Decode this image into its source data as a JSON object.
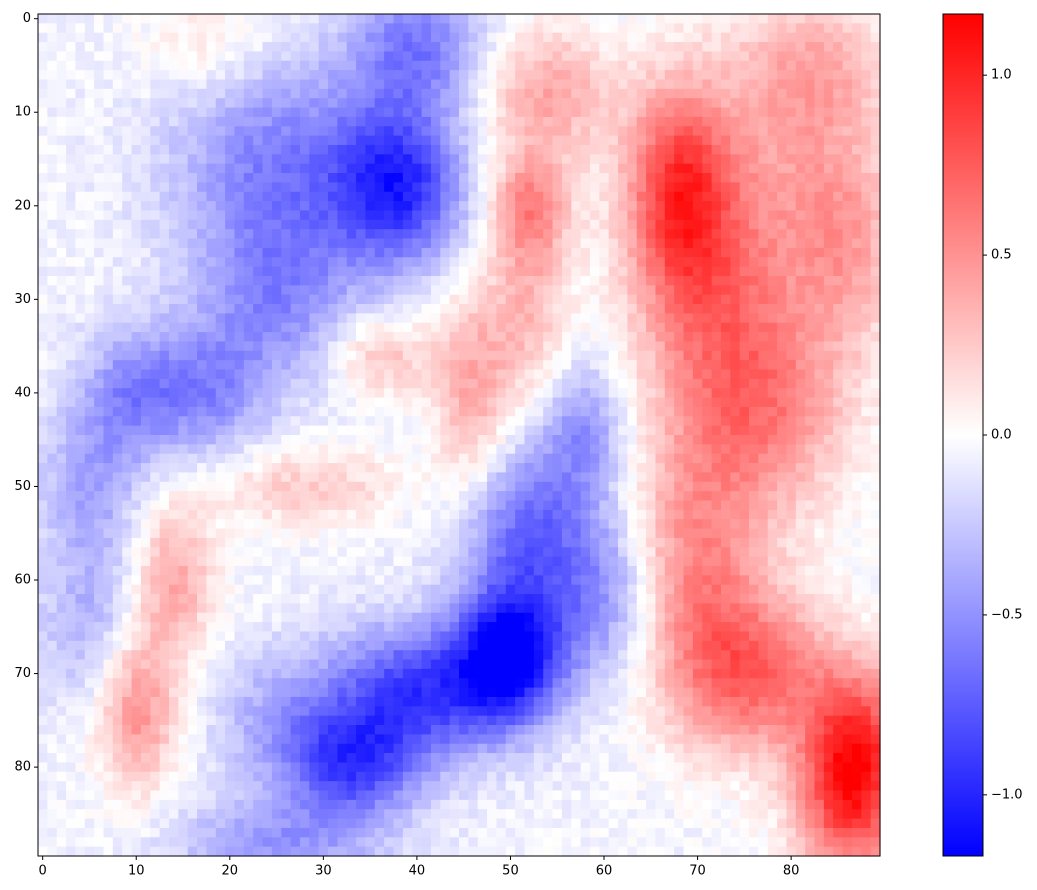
{
  "chart_data": {
    "type": "heatmap",
    "title": "",
    "xlabel": "",
    "ylabel": "",
    "grid_size": [
      90,
      90
    ],
    "x_ticks": [
      0,
      10,
      20,
      30,
      40,
      50,
      60,
      70,
      80
    ],
    "y_ticks": [
      0,
      10,
      20,
      30,
      40,
      50,
      60,
      70,
      80
    ],
    "colormap": "bwr",
    "colormap_colors": {
      "low": "#0000ff",
      "mid": "#ffffff",
      "high": "#ff0000"
    },
    "vmin": -1.17,
    "vmax": 1.17,
    "colorbar_ticks": [
      {
        "value": 1.0,
        "label": "1.0"
      },
      {
        "value": 0.5,
        "label": "0.5"
      },
      {
        "value": 0.0,
        "label": "0.0"
      },
      {
        "value": -0.5,
        "label": "−0.5"
      },
      {
        "value": -1.0,
        "label": "−1.0"
      }
    ],
    "value_model": {
      "description": "approximate field reconstructed as sum of gaussian blobs (row, col, amplitude, sigma_row, sigma_col)",
      "base": -0.05,
      "blobs": [
        [
          18,
          68,
          0.85,
          8,
          4
        ],
        [
          30,
          72,
          0.55,
          10,
          6
        ],
        [
          42,
          78,
          0.5,
          8,
          6
        ],
        [
          58,
          70,
          0.55,
          10,
          5
        ],
        [
          70,
          76,
          0.7,
          6,
          6
        ],
        [
          78,
          87,
          1.0,
          6,
          4
        ],
        [
          86,
          86,
          0.55,
          5,
          4
        ],
        [
          14,
          80,
          0.3,
          10,
          6
        ],
        [
          5,
          83,
          0.3,
          5,
          6
        ],
        [
          24,
          86,
          0.4,
          8,
          4
        ],
        [
          8,
          54,
          0.45,
          5,
          5
        ],
        [
          20,
          52,
          0.5,
          4,
          3
        ],
        [
          40,
          46,
          0.45,
          8,
          3
        ],
        [
          30,
          52,
          0.35,
          8,
          3
        ],
        [
          50,
          28,
          0.3,
          3,
          7
        ],
        [
          36,
          36,
          0.35,
          3,
          4
        ],
        [
          74,
          10,
          0.55,
          6,
          3
        ],
        [
          60,
          14,
          0.45,
          6,
          3
        ],
        [
          3,
          18,
          0.2,
          4,
          5
        ],
        [
          18,
          38,
          -0.9,
          6,
          5
        ],
        [
          15,
          25,
          -0.5,
          8,
          8
        ],
        [
          3,
          40,
          -0.55,
          5,
          5
        ],
        [
          30,
          25,
          -0.45,
          7,
          6
        ],
        [
          40,
          10,
          -0.5,
          5,
          4
        ],
        [
          40,
          18,
          -0.4,
          5,
          4
        ],
        [
          68,
          50,
          -1.05,
          5,
          4
        ],
        [
          72,
          40,
          -0.85,
          5,
          7
        ],
        [
          80,
          33,
          -0.75,
          4,
          5
        ],
        [
          55,
          52,
          -0.65,
          7,
          5
        ],
        [
          62,
          60,
          -0.4,
          6,
          4
        ],
        [
          88,
          25,
          -0.4,
          3,
          8
        ],
        [
          50,
          5,
          -0.35,
          6,
          4
        ],
        [
          65,
          5,
          -0.3,
          6,
          4
        ],
        [
          44,
          58,
          -0.4,
          5,
          3
        ],
        [
          75,
          25,
          -0.3,
          5,
          5
        ]
      ]
    }
  }
}
